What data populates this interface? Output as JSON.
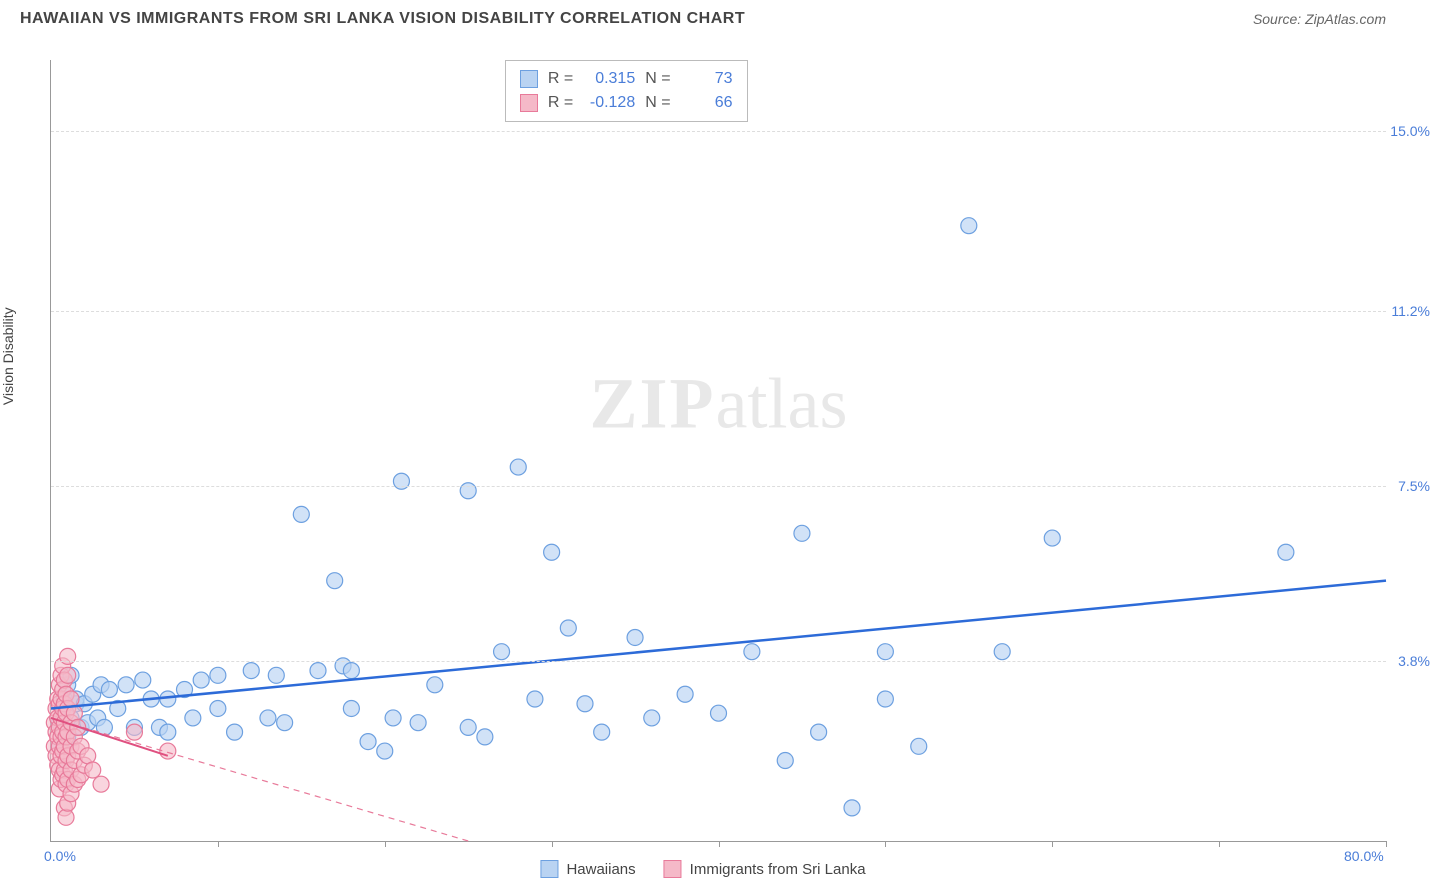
{
  "title": "HAWAIIAN VS IMMIGRANTS FROM SRI LANKA VISION DISABILITY CORRELATION CHART",
  "source_prefix": "Source: ",
  "source_name": "ZipAtlas.com",
  "watermark_zip": "ZIP",
  "watermark_atlas": "atlas",
  "y_axis_label": "Vision Disability",
  "chart": {
    "type": "scatter",
    "xlim": [
      0,
      80
    ],
    "ylim": [
      0,
      16.5
    ],
    "x_ticks": [
      10,
      20,
      30,
      40,
      50,
      60,
      70,
      80
    ],
    "y_gridlines": [
      3.8,
      7.5,
      11.2,
      15.0
    ],
    "y_tick_labels": [
      "3.8%",
      "7.5%",
      "11.2%",
      "15.0%"
    ],
    "origin_label": "0.0%",
    "xmax_label": "80.0%",
    "grid_color": "#dddddd",
    "axis_color": "#999999",
    "label_color": "#4a7dd8",
    "series": [
      {
        "name": "Hawaiians",
        "fill": "#b9d3f2",
        "stroke": "#6da0e0",
        "fill_opacity": 0.65,
        "marker_radius": 8,
        "trend": {
          "x1": 0,
          "y1": 2.8,
          "x2": 80,
          "y2": 5.5,
          "color": "#2d6bd8",
          "width": 2.5,
          "dash": "none"
        },
        "points": [
          [
            0.5,
            2.0
          ],
          [
            0.5,
            2.5
          ],
          [
            0.8,
            3.0
          ],
          [
            1.0,
            2.2
          ],
          [
            1.0,
            3.3
          ],
          [
            1.2,
            2.6
          ],
          [
            1.2,
            3.5
          ],
          [
            1.5,
            2.9
          ],
          [
            1.5,
            3.0
          ],
          [
            1.8,
            2.4
          ],
          [
            2.0,
            2.9
          ],
          [
            2.2,
            2.5
          ],
          [
            2.5,
            3.1
          ],
          [
            2.8,
            2.6
          ],
          [
            3.0,
            3.3
          ],
          [
            3.2,
            2.4
          ],
          [
            3.5,
            3.2
          ],
          [
            4.0,
            2.8
          ],
          [
            4.5,
            3.3
          ],
          [
            5.0,
            2.4
          ],
          [
            5.5,
            3.4
          ],
          [
            6.0,
            3.0
          ],
          [
            6.5,
            2.4
          ],
          [
            7.0,
            3.0
          ],
          [
            7.0,
            2.3
          ],
          [
            8.0,
            3.2
          ],
          [
            8.5,
            2.6
          ],
          [
            9.0,
            3.4
          ],
          [
            10.0,
            3.5
          ],
          [
            10.0,
            2.8
          ],
          [
            11.0,
            2.3
          ],
          [
            12.0,
            3.6
          ],
          [
            13.0,
            2.6
          ],
          [
            13.5,
            3.5
          ],
          [
            14.0,
            2.5
          ],
          [
            15.0,
            6.9
          ],
          [
            16.0,
            3.6
          ],
          [
            17.0,
            5.5
          ],
          [
            17.5,
            3.7
          ],
          [
            18.0,
            2.8
          ],
          [
            18.0,
            3.6
          ],
          [
            19.0,
            2.1
          ],
          [
            20.0,
            1.9
          ],
          [
            20.5,
            2.6
          ],
          [
            21.0,
            7.6
          ],
          [
            22.0,
            2.5
          ],
          [
            23.0,
            3.3
          ],
          [
            25.0,
            2.4
          ],
          [
            25.0,
            7.4
          ],
          [
            26.0,
            2.2
          ],
          [
            27.0,
            4.0
          ],
          [
            28.0,
            7.9
          ],
          [
            29.0,
            3.0
          ],
          [
            30.0,
            6.1
          ],
          [
            31.0,
            4.5
          ],
          [
            32.0,
            2.9
          ],
          [
            33.0,
            2.3
          ],
          [
            35.0,
            4.3
          ],
          [
            36.0,
            2.6
          ],
          [
            38.0,
            3.1
          ],
          [
            40.0,
            2.7
          ],
          [
            42.0,
            4.0
          ],
          [
            44.0,
            1.7
          ],
          [
            45.0,
            6.5
          ],
          [
            46.0,
            2.3
          ],
          [
            48.0,
            0.7
          ],
          [
            50.0,
            3.0
          ],
          [
            50.0,
            4.0
          ],
          [
            52.0,
            2.0
          ],
          [
            55.0,
            13.0
          ],
          [
            57.0,
            4.0
          ],
          [
            60.0,
            6.4
          ],
          [
            74.0,
            6.1
          ]
        ]
      },
      {
        "name": "Immigrants from Sri Lanka",
        "fill": "#f5b9c8",
        "stroke": "#e87a9a",
        "fill_opacity": 0.6,
        "marker_radius": 8,
        "trend": {
          "x1": 0,
          "y1": 2.6,
          "x2": 25,
          "y2": 0,
          "color": "#e87a9a",
          "width": 1.2,
          "dash": "6,5"
        },
        "trend_solid": {
          "x1": 0,
          "y1": 2.6,
          "x2": 7,
          "y2": 1.8,
          "color": "#e05080",
          "width": 2,
          "dash": "none"
        },
        "points": [
          [
            0.2,
            2.5
          ],
          [
            0.2,
            2.0
          ],
          [
            0.3,
            2.8
          ],
          [
            0.3,
            2.3
          ],
          [
            0.3,
            1.8
          ],
          [
            0.4,
            3.0
          ],
          [
            0.4,
            2.6
          ],
          [
            0.4,
            2.2
          ],
          [
            0.4,
            1.6
          ],
          [
            0.5,
            3.3
          ],
          [
            0.5,
            2.9
          ],
          [
            0.5,
            2.4
          ],
          [
            0.5,
            2.0
          ],
          [
            0.5,
            1.5
          ],
          [
            0.5,
            1.1
          ],
          [
            0.6,
            3.5
          ],
          [
            0.6,
            3.0
          ],
          [
            0.6,
            2.6
          ],
          [
            0.6,
            2.2
          ],
          [
            0.6,
            1.8
          ],
          [
            0.6,
            1.3
          ],
          [
            0.7,
            3.7
          ],
          [
            0.7,
            3.2
          ],
          [
            0.7,
            2.8
          ],
          [
            0.7,
            2.3
          ],
          [
            0.7,
            1.9
          ],
          [
            0.7,
            1.4
          ],
          [
            0.8,
            3.4
          ],
          [
            0.8,
            2.9
          ],
          [
            0.8,
            2.5
          ],
          [
            0.8,
            2.0
          ],
          [
            0.8,
            1.5
          ],
          [
            0.8,
            0.7
          ],
          [
            0.9,
            3.1
          ],
          [
            0.9,
            2.7
          ],
          [
            0.9,
            2.2
          ],
          [
            0.9,
            1.7
          ],
          [
            0.9,
            1.2
          ],
          [
            0.9,
            0.5
          ],
          [
            1.0,
            3.9
          ],
          [
            1.0,
            3.5
          ],
          [
            1.0,
            2.8
          ],
          [
            1.0,
            2.3
          ],
          [
            1.0,
            1.8
          ],
          [
            1.0,
            1.3
          ],
          [
            1.0,
            0.8
          ],
          [
            1.2,
            3.0
          ],
          [
            1.2,
            2.5
          ],
          [
            1.2,
            2.0
          ],
          [
            1.2,
            1.5
          ],
          [
            1.2,
            1.0
          ],
          [
            1.4,
            2.7
          ],
          [
            1.4,
            2.2
          ],
          [
            1.4,
            1.7
          ],
          [
            1.4,
            1.2
          ],
          [
            1.6,
            2.4
          ],
          [
            1.6,
            1.9
          ],
          [
            1.6,
            1.3
          ],
          [
            1.8,
            2.0
          ],
          [
            1.8,
            1.4
          ],
          [
            2.0,
            1.6
          ],
          [
            2.2,
            1.8
          ],
          [
            2.5,
            1.5
          ],
          [
            3.0,
            1.2
          ],
          [
            5.0,
            2.3
          ],
          [
            7.0,
            1.9
          ]
        ]
      }
    ]
  },
  "stats": {
    "rows": [
      {
        "swatch_fill": "#b9d3f2",
        "swatch_stroke": "#6da0e0",
        "r_label": "R =",
        "r_value": "0.315",
        "n_label": "N =",
        "n_value": "73"
      },
      {
        "swatch_fill": "#f5b9c8",
        "swatch_stroke": "#e87a9a",
        "r_label": "R =",
        "r_value": "-0.128",
        "n_label": "N =",
        "n_value": "66"
      }
    ]
  },
  "legend": {
    "items": [
      {
        "swatch_fill": "#b9d3f2",
        "swatch_stroke": "#6da0e0",
        "label": "Hawaiians"
      },
      {
        "swatch_fill": "#f5b9c8",
        "swatch_stroke": "#e87a9a",
        "label": "Immigrants from Sri Lanka"
      }
    ]
  }
}
